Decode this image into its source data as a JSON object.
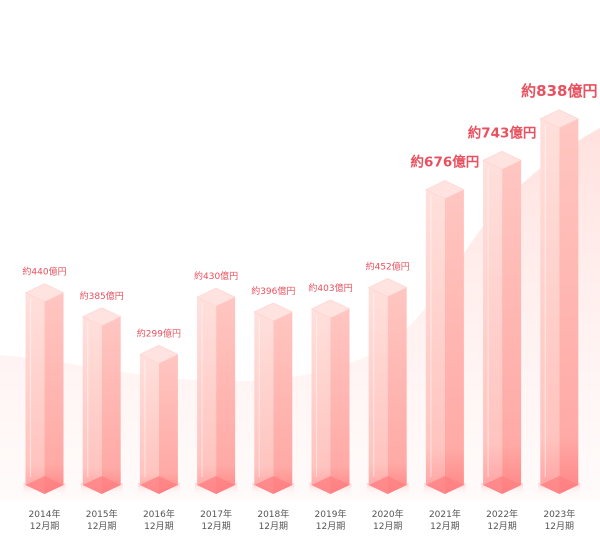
{
  "chart_data": {
    "type": "bar",
    "categories": [
      "2014年\n12月期",
      "2015年\n12月期",
      "2016年\n12月期",
      "2017年\n12月期",
      "2018年\n12月期",
      "2019年\n12月期",
      "2020年\n12月期",
      "2021年\n12月期",
      "2022年\n12月期",
      "2023年\n12月期"
    ],
    "values": [
      440,
      385,
      299,
      430,
      396,
      403,
      452,
      676,
      743,
      838
    ],
    "data_labels": [
      "約440億円",
      "約385億円",
      "約299億円",
      "約430億円",
      "約396億円",
      "約403億円",
      "約452億円",
      "約676億円",
      "約743億円",
      "約838億円"
    ],
    "title": "",
    "xlabel": "",
    "ylabel": "",
    "grid": false,
    "legend": "none",
    "colors": {
      "bar_light": "#ffd3cf",
      "bar_mid": "#ffb5b0",
      "bar_dark": "#ff8a8a",
      "label": "#e8515f",
      "axis_text": "#555555"
    }
  }
}
